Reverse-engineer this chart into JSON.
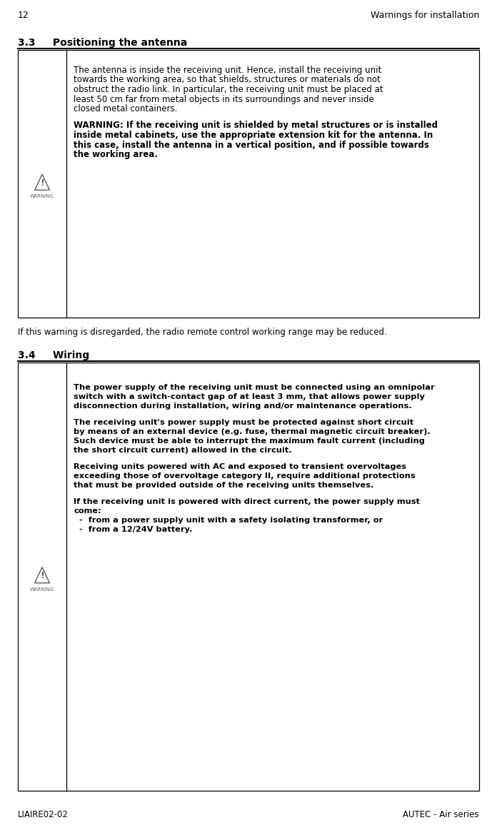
{
  "page_num": "12",
  "page_right_header": "Warnings for installation",
  "footer_left": "LIAIRE02-02",
  "footer_right": "AUTEC - Air series",
  "section_33_title": "3.3     Positioning the antenna",
  "section_34_title": "3.4     Wiring",
  "box1_normal_text": "The antenna is inside the receiving unit. Hence, install the receiving unit towards the working area, so that shields, structures or materials do not obstruct the radio link. In particular, the receiving unit must be placed at least 50 cm far from metal objects in its surroundings and never inside closed metal containers.",
  "box1_bold_text": "WARNING: If the receiving unit is shielded by metal structures or is installed inside metal cabinets, use the appropriate extension kit for the antenna. In this case, install the antenna in a vertical position, and if possible towards the working area.",
  "between_text": "If this warning is disregarded, the radio remote control working range may be reduced.",
  "box2_para1": "The power supply of the receiving unit must be connected using an omnipolar switch with a switch-contact gap of at least 3 mm, that allows power supply disconnection during installation, wiring and/or maintenance operations.",
  "box2_para2": "The receiving unit's power supply must be protected against short circuit by means of an external device (e.g. fuse, thermal magnetic circuit breaker). Such device must be able to interrupt the maximum fault current (including the short circuit current) allowed in the circuit.",
  "box2_para3": "Receiving units powered with AC and exposed to transient overvoltages exceeding those of overvoltage category II, require additional protections that must be provided outside of the receiving units themselves.",
  "box2_para4": "If the receiving unit is powered with direct current, the power supply must come:",
  "box2_bullet1": "  -  from a power supply unit with a safety isolating transformer, or",
  "box2_bullet2": "  -  from a 12/24V battery.",
  "bg_color": "#ffffff",
  "text_color": "#000000",
  "box_border_color": "#000000",
  "section_line_color": "#000000",
  "fig_width": 6.96,
  "fig_height": 11.63,
  "dpi": 100
}
